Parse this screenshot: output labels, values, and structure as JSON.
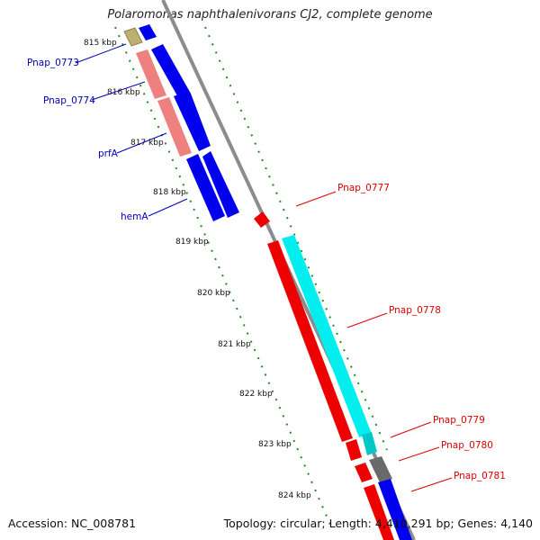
{
  "title": "Polaromonas naphthalenivorans CJ2, complete genome",
  "footer": {
    "accession": "Accession: NC_008781",
    "topology": "Topology: circular; Length: 4,410,291 bp; Genes: 4,140"
  },
  "colors": {
    "backbone": "#8c8c8c",
    "tick": "#228b22",
    "label_left": "#0000bb",
    "label_right": "#dd0000",
    "gene_blue": "#0000ee",
    "gene_red": "#ee0000",
    "gene_pink": "#ee8080",
    "gene_cyan": "#00eeee",
    "gene_olive": "#bbb070",
    "gene_gray": "#6a6a6a"
  },
  "kbp_labels": [
    "815 kbp",
    "816 kbp",
    "817 kbp",
    "818 kbp",
    "819 kbp",
    "820 kbp",
    "821 kbp",
    "822 kbp",
    "823 kbp",
    "824 kbp"
  ],
  "gene_labels_left": [
    "Pnap_0773",
    "Pnap_0774",
    "prfA",
    "hemA"
  ],
  "gene_labels_right": [
    "Pnap_0777",
    "Pnap_0778",
    "Pnap_0779",
    "Pnap_0780",
    "Pnap_0781"
  ]
}
